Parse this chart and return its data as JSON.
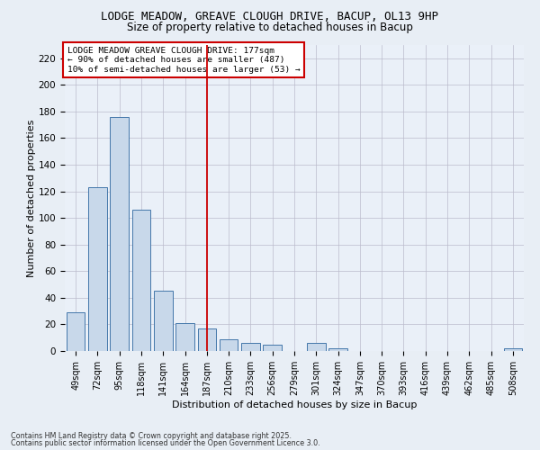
{
  "title1": "LODGE MEADOW, GREAVE CLOUGH DRIVE, BACUP, OL13 9HP",
  "title2": "Size of property relative to detached houses in Bacup",
  "xlabel": "Distribution of detached houses by size in Bacup",
  "ylabel": "Number of detached properties",
  "bin_labels": [
    "49sqm",
    "72sqm",
    "95sqm",
    "118sqm",
    "141sqm",
    "164sqm",
    "187sqm",
    "210sqm",
    "233sqm",
    "256sqm",
    "279sqm",
    "301sqm",
    "324sqm",
    "347sqm",
    "370sqm",
    "393sqm",
    "416sqm",
    "439sqm",
    "462sqm",
    "485sqm",
    "508sqm"
  ],
  "bar_values": [
    29,
    123,
    176,
    106,
    45,
    21,
    17,
    9,
    6,
    5,
    0,
    6,
    2,
    0,
    0,
    0,
    0,
    0,
    0,
    0,
    2
  ],
  "bar_color": "#c8d8ea",
  "bar_edgecolor": "#4477aa",
  "ylim": [
    0,
    230
  ],
  "yticks": [
    0,
    20,
    40,
    60,
    80,
    100,
    120,
    140,
    160,
    180,
    200,
    220
  ],
  "vline_x": 6,
  "vline_color": "#cc0000",
  "annotation_text": "LODGE MEADOW GREAVE CLOUGH DRIVE: 177sqm\n← 90% of detached houses are smaller (487)\n10% of semi-detached houses are larger (53) →",
  "annotation_box_color": "#ffffff",
  "annotation_box_edgecolor": "#cc0000",
  "bg_color": "#e8eef5",
  "plot_bg_color": "#eaf0f8",
  "footer1": "Contains HM Land Registry data © Crown copyright and database right 2025.",
  "footer2": "Contains public sector information licensed under the Open Government Licence 3.0."
}
